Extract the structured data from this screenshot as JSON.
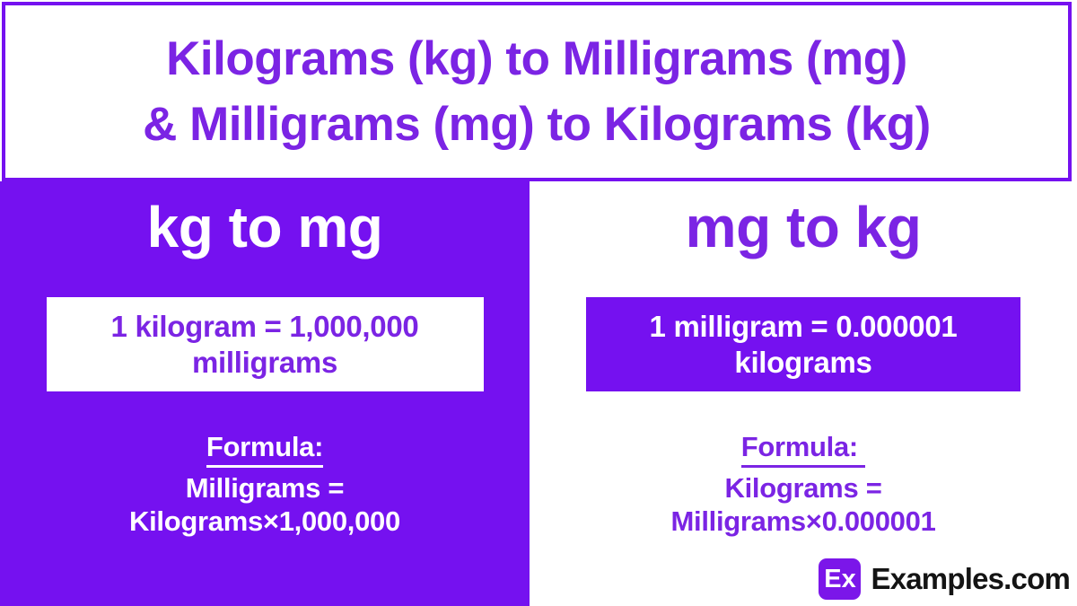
{
  "colors": {
    "panel_purple": "#7511F0",
    "text_purple": "#7B24E4",
    "badge_purple": "#7B16E9",
    "logo_text_color": "#141414"
  },
  "title": {
    "line1": "Kilograms (kg) to Milligrams (mg)",
    "line2": "& Milligrams (mg) to Kilograms (kg)"
  },
  "left_card": {
    "heading": "kg to mg",
    "conversion_line1": "1 kilogram = 1,000,000",
    "conversion_line2": "milligrams",
    "formula_label": "Formula:",
    "formula_line1": "Milligrams =",
    "formula_line2": "Kilograms×1,000,000"
  },
  "right_card": {
    "heading": "mg to kg",
    "conversion_line1": "1 milligram = 0.000001",
    "conversion_line2": "kilograms",
    "formula_label": "Formula: ",
    "formula_line1": "Kilograms =",
    "formula_line2": "Milligrams×0.000001"
  },
  "logo": {
    "badge_text": "Ex",
    "brand_text": "Examples.com"
  }
}
